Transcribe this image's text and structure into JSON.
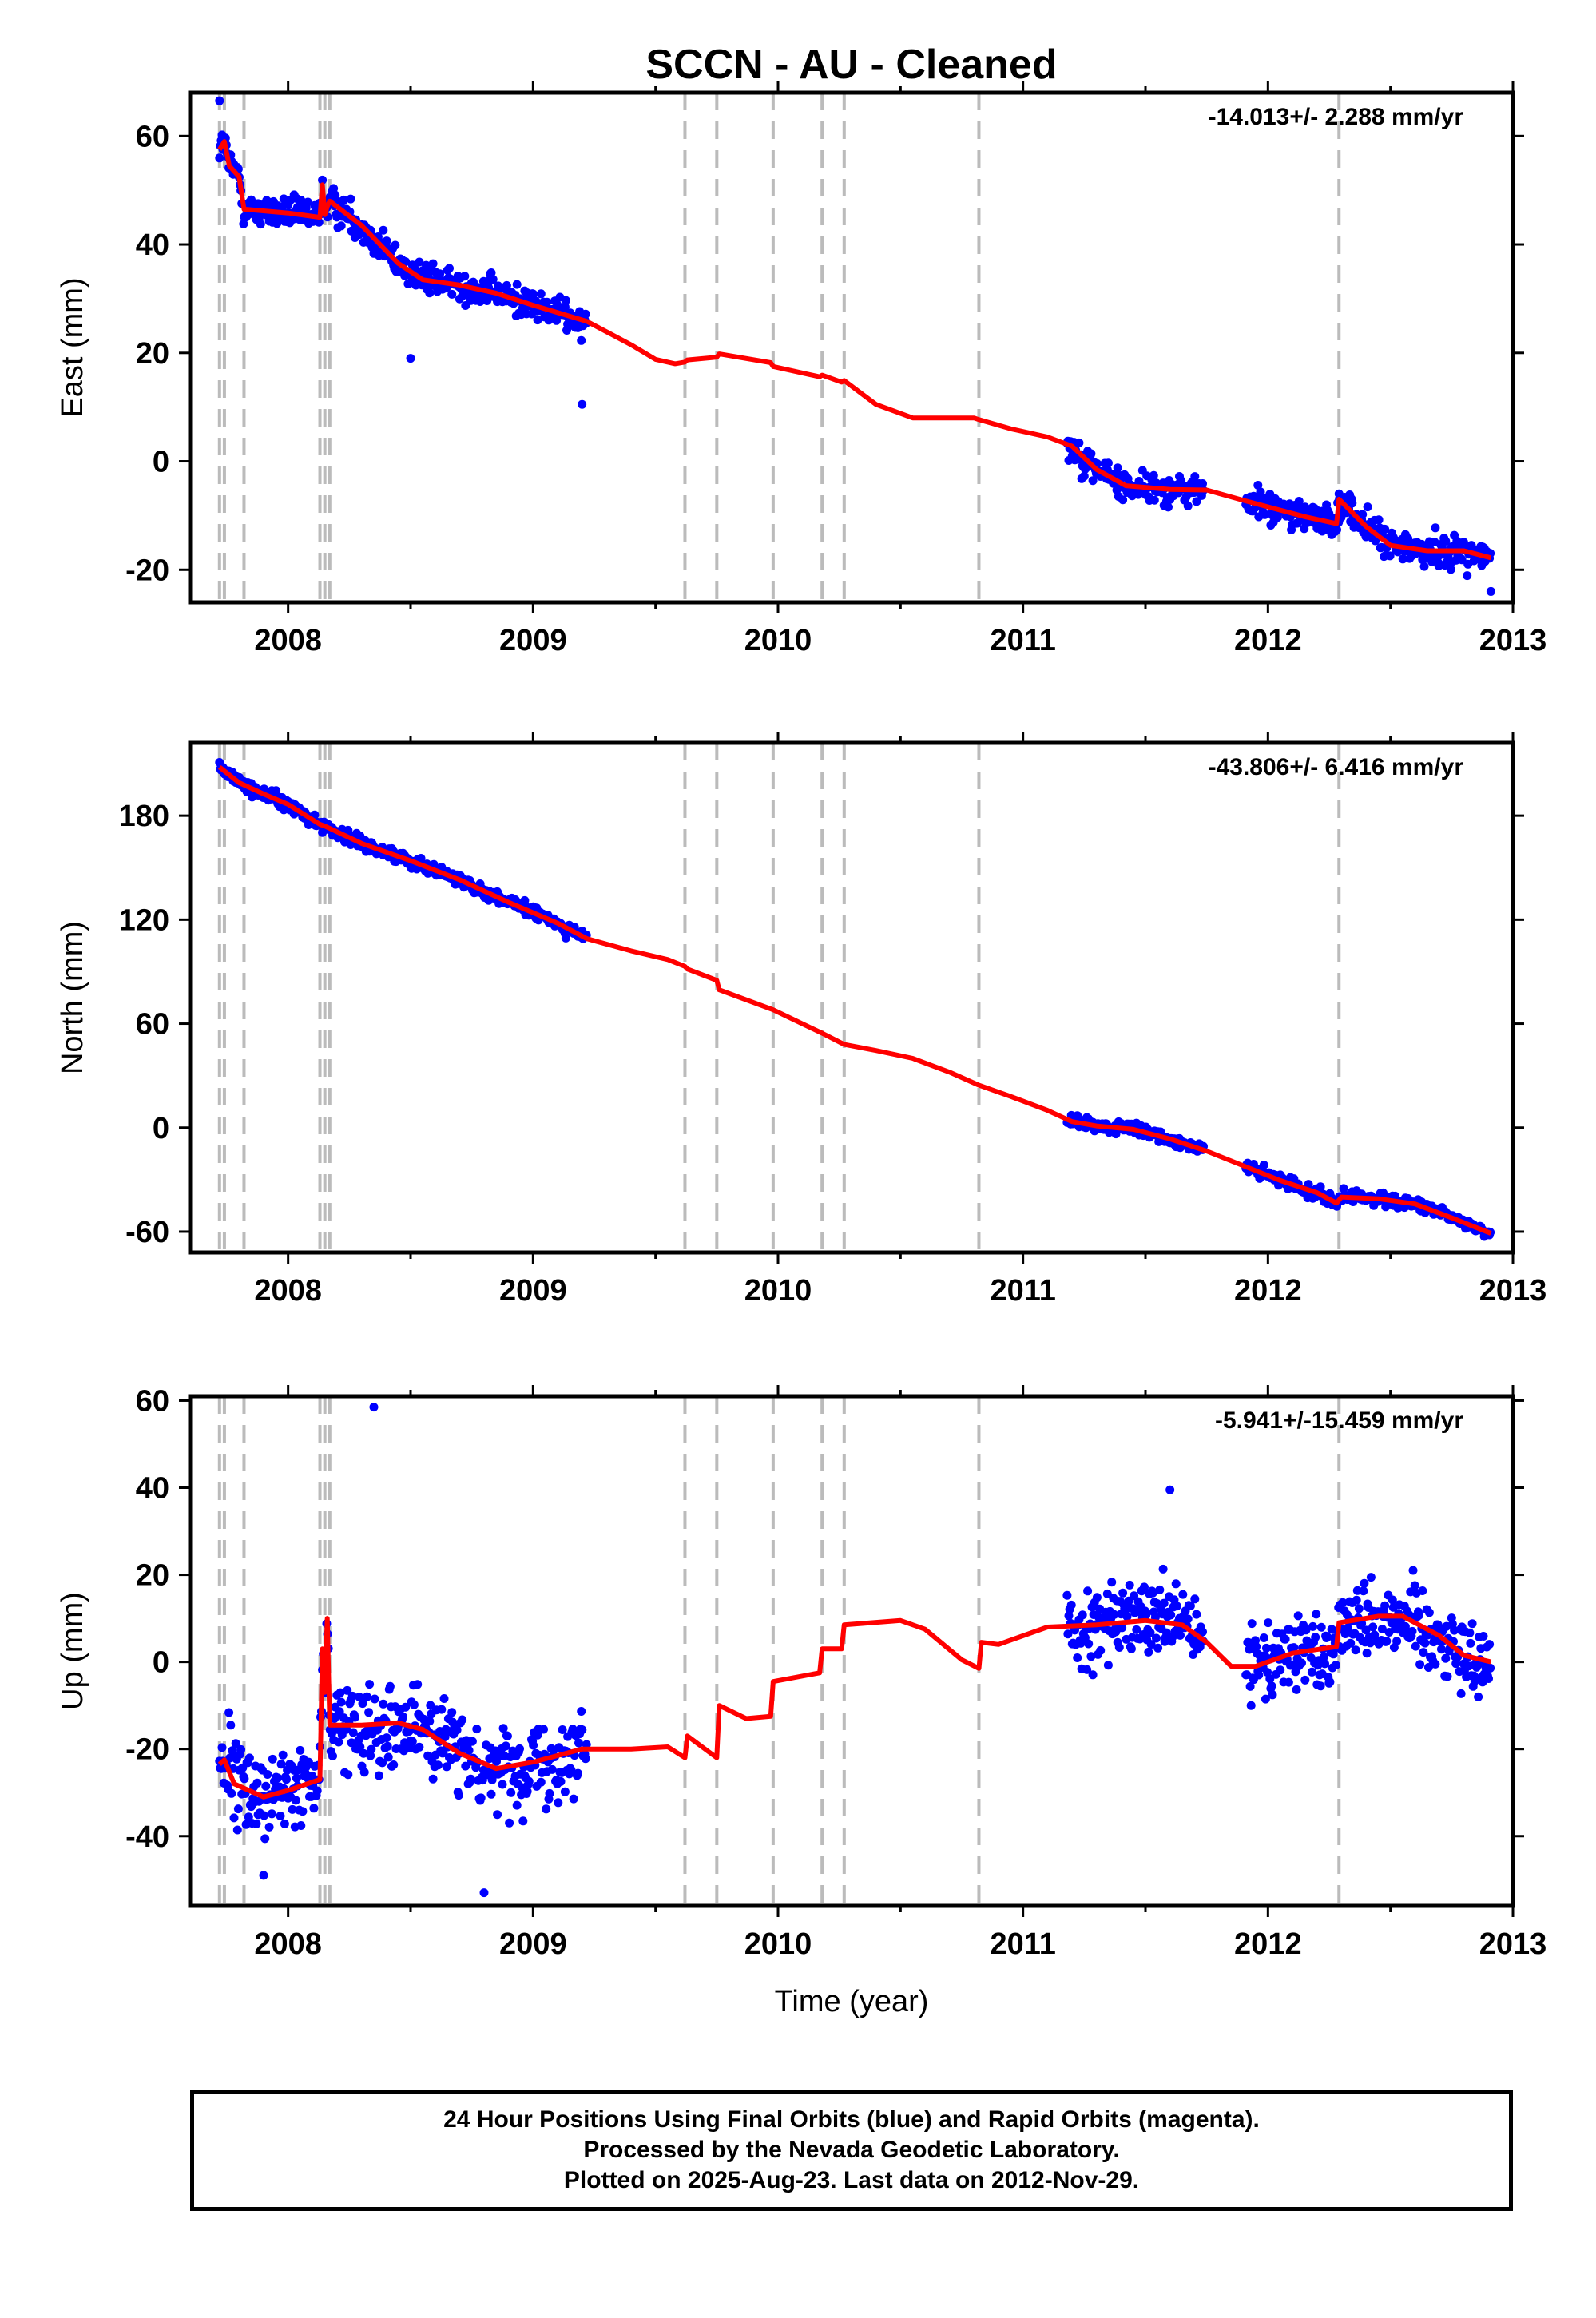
{
  "colors": {
    "final_orbits": "#0000ff",
    "model_fit": "#ff0000",
    "offset_lines": "#bbbbbb",
    "frame": "#000000"
  },
  "chart_data": [
    {
      "type": "scatter",
      "title": "SCCN  - AU - Cleaned",
      "ylabel": "East (mm)",
      "xlabel": "",
      "rate_label": "-14.013+/- 2.288 mm/yr",
      "xlim": [
        2007.6,
        2013.0
      ],
      "ylim": [
        -26,
        68
      ],
      "xticks": [
        2008,
        2009,
        2010,
        2011,
        2012,
        2013
      ],
      "yticks": [
        -20,
        0,
        20,
        40,
        60
      ],
      "grid": false,
      "offset_epochs": [
        2007.72,
        2007.74,
        2007.82,
        2008.13,
        2008.15,
        2008.17,
        2009.62,
        2009.75,
        2009.98,
        2010.18,
        2010.27,
        2010.82,
        2012.29
      ],
      "data_segments": [
        [
          2007.72,
          2009.22
        ],
        [
          2011.18,
          2011.74
        ],
        [
          2011.91,
          2012.91
        ]
      ],
      "fit_curve": [
        [
          2007.72,
          57.5
        ],
        [
          2007.74,
          59.0
        ],
        [
          2007.76,
          54.5
        ],
        [
          2007.8,
          52.5
        ],
        [
          2007.82,
          46.5
        ],
        [
          2008.0,
          45.8
        ],
        [
          2008.13,
          45.0
        ],
        [
          2008.14,
          51.0
        ],
        [
          2008.15,
          45.5
        ],
        [
          2008.16,
          47.0
        ],
        [
          2008.17,
          48.0
        ],
        [
          2008.3,
          43.5
        ],
        [
          2008.45,
          36.5
        ],
        [
          2008.55,
          33.5
        ],
        [
          2008.7,
          32.5
        ],
        [
          2008.85,
          31.0
        ],
        [
          2009.0,
          28.8
        ],
        [
          2009.22,
          25.8
        ],
        [
          2009.4,
          21.5
        ],
        [
          2009.5,
          18.8
        ],
        [
          2009.58,
          18.0
        ],
        [
          2009.62,
          18.3
        ],
        [
          2009.63,
          18.7
        ],
        [
          2009.75,
          19.2
        ],
        [
          2009.76,
          19.8
        ],
        [
          2009.97,
          18.2
        ],
        [
          2009.98,
          17.5
        ],
        [
          2010.17,
          15.6
        ],
        [
          2010.18,
          15.9
        ],
        [
          2010.26,
          14.6
        ],
        [
          2010.27,
          14.9
        ],
        [
          2010.4,
          10.5
        ],
        [
          2010.55,
          8.0
        ],
        [
          2010.7,
          8.0
        ],
        [
          2010.8,
          8.0
        ],
        [
          2010.82,
          7.7
        ],
        [
          2010.95,
          6.0
        ],
        [
          2011.1,
          4.5
        ],
        [
          2011.2,
          2.8
        ],
        [
          2011.3,
          -1.5
        ],
        [
          2011.42,
          -4.5
        ],
        [
          2011.6,
          -5.2
        ],
        [
          2011.75,
          -5.3
        ],
        [
          2011.9,
          -7.2
        ],
        [
          2012.05,
          -9.0
        ],
        [
          2012.15,
          -10.2
        ],
        [
          2012.28,
          -11.5
        ],
        [
          2012.29,
          -7.0
        ],
        [
          2012.4,
          -12.0
        ],
        [
          2012.5,
          -15.5
        ],
        [
          2012.65,
          -16.5
        ],
        [
          2012.8,
          -16.5
        ],
        [
          2012.91,
          -17.8
        ]
      ],
      "points_summary": [
        {
          "x": 2007.72,
          "y": 66.5
        },
        {
          "x": 2008.5,
          "y": 19.0
        },
        {
          "x": 2009.2,
          "y": 10.5
        },
        {
          "x": 2011.2,
          "y": 3.0
        },
        {
          "x": 2012.29,
          "y": -6.0
        },
        {
          "x": 2012.91,
          "y": -24.0
        }
      ]
    },
    {
      "type": "scatter",
      "title": "",
      "ylabel": "North (mm)",
      "xlabel": "",
      "rate_label": "-43.806+/- 6.416 mm/yr",
      "xlim": [
        2007.6,
        2013.0
      ],
      "ylim": [
        -72,
        222
      ],
      "xticks": [
        2008,
        2009,
        2010,
        2011,
        2012,
        2013
      ],
      "yticks": [
        -60,
        0,
        60,
        120,
        180
      ],
      "grid": false,
      "offset_epochs": [
        2007.72,
        2007.74,
        2007.82,
        2008.13,
        2008.15,
        2008.17,
        2009.62,
        2009.75,
        2009.98,
        2010.18,
        2010.27,
        2010.82,
        2012.29
      ],
      "data_segments": [
        [
          2007.72,
          2009.22
        ],
        [
          2011.18,
          2011.74
        ],
        [
          2011.91,
          2012.91
        ]
      ],
      "fit_curve": [
        [
          2007.72,
          208.0
        ],
        [
          2007.8,
          199.0
        ],
        [
          2007.9,
          192.5
        ],
        [
          2008.0,
          186.5
        ],
        [
          2008.13,
          175.0
        ],
        [
          2008.15,
          174.0
        ],
        [
          2008.3,
          164.0
        ],
        [
          2008.5,
          154.0
        ],
        [
          2008.7,
          143.0
        ],
        [
          2008.9,
          130.0
        ],
        [
          2009.1,
          118.0
        ],
        [
          2009.22,
          109.0
        ],
        [
          2009.4,
          102.0
        ],
        [
          2009.55,
          97.0
        ],
        [
          2009.62,
          93.0
        ],
        [
          2009.63,
          91.5
        ],
        [
          2009.75,
          85.0
        ],
        [
          2009.76,
          79.5
        ],
        [
          2009.98,
          68.0
        ],
        [
          2010.18,
          54.5
        ],
        [
          2010.27,
          48.0
        ],
        [
          2010.4,
          44.5
        ],
        [
          2010.55,
          40.0
        ],
        [
          2010.7,
          32.0
        ],
        [
          2010.82,
          24.5
        ],
        [
          2010.95,
          18.0
        ],
        [
          2011.1,
          10.0
        ],
        [
          2011.2,
          3.5
        ],
        [
          2011.3,
          1.0
        ],
        [
          2011.45,
          -1.0
        ],
        [
          2011.6,
          -6.5
        ],
        [
          2011.75,
          -13.5
        ],
        [
          2011.9,
          -22.0
        ],
        [
          2012.05,
          -30.5
        ],
        [
          2012.2,
          -37.5
        ],
        [
          2012.28,
          -43.5
        ],
        [
          2012.3,
          -40.0
        ],
        [
          2012.45,
          -41.0
        ],
        [
          2012.6,
          -44.0
        ],
        [
          2012.75,
          -52.0
        ],
        [
          2012.91,
          -61.0
        ]
      ]
    },
    {
      "type": "scatter",
      "title": "",
      "ylabel": "Up (mm)",
      "xlabel": "Time (year)",
      "rate_label": "-5.941+/-15.459 mm/yr",
      "xlim": [
        2007.6,
        2013.0
      ],
      "ylim": [
        -56,
        61
      ],
      "xticks": [
        2008,
        2009,
        2010,
        2011,
        2012,
        2013
      ],
      "yticks": [
        -40,
        -20,
        0,
        20,
        40,
        60
      ],
      "grid": false,
      "offset_epochs": [
        2007.72,
        2007.74,
        2007.82,
        2008.13,
        2008.15,
        2008.17,
        2009.62,
        2009.75,
        2009.98,
        2010.18,
        2010.27,
        2010.82,
        2012.29
      ],
      "data_segments": [
        [
          2007.72,
          2009.22
        ],
        [
          2011.18,
          2011.74
        ],
        [
          2011.91,
          2012.91
        ]
      ],
      "fit_curve": [
        [
          2007.72,
          -23.5
        ],
        [
          2007.74,
          -22.5
        ],
        [
          2007.78,
          -28.0
        ],
        [
          2007.9,
          -31.0
        ],
        [
          2008.0,
          -29.5
        ],
        [
          2008.13,
          -27.0
        ],
        [
          2008.14,
          3.0
        ],
        [
          2008.15,
          -7.0
        ],
        [
          2008.16,
          10.0
        ],
        [
          2008.17,
          -14.5
        ],
        [
          2008.3,
          -14.5
        ],
        [
          2008.45,
          -14.0
        ],
        [
          2008.55,
          -15.5
        ],
        [
          2008.7,
          -21.0
        ],
        [
          2008.85,
          -24.5
        ],
        [
          2009.0,
          -23.0
        ],
        [
          2009.2,
          -20.0
        ],
        [
          2009.4,
          -20.0
        ],
        [
          2009.55,
          -19.5
        ],
        [
          2009.62,
          -22.0
        ],
        [
          2009.63,
          -17.0
        ],
        [
          2009.75,
          -22.0
        ],
        [
          2009.76,
          -10.0
        ],
        [
          2009.87,
          -13.0
        ],
        [
          2009.97,
          -12.5
        ],
        [
          2009.98,
          -4.5
        ],
        [
          2010.17,
          -2.5
        ],
        [
          2010.18,
          3.0
        ],
        [
          2010.26,
          3.0
        ],
        [
          2010.27,
          8.5
        ],
        [
          2010.5,
          9.5
        ],
        [
          2010.6,
          7.5
        ],
        [
          2010.75,
          0.5
        ],
        [
          2010.82,
          -1.5
        ],
        [
          2010.83,
          4.5
        ],
        [
          2010.9,
          4.0
        ],
        [
          2011.1,
          8.0
        ],
        [
          2011.3,
          8.5
        ],
        [
          2011.5,
          9.5
        ],
        [
          2011.65,
          8.5
        ],
        [
          2011.75,
          4.5
        ],
        [
          2011.85,
          -1.0
        ],
        [
          2011.95,
          -1.0
        ],
        [
          2012.1,
          2.0
        ],
        [
          2012.28,
          3.5
        ],
        [
          2012.29,
          9.0
        ],
        [
          2012.45,
          10.5
        ],
        [
          2012.55,
          10.5
        ],
        [
          2012.7,
          6.0
        ],
        [
          2012.8,
          1.5
        ],
        [
          2012.91,
          0.0
        ]
      ],
      "points_summary": [
        {
          "x": 2008.35,
          "y": 58.5
        },
        {
          "x": 2008.8,
          "y": -53.0
        },
        {
          "x": 2011.6,
          "y": 39.5
        },
        {
          "x": 2007.9,
          "y": -49.0
        }
      ]
    }
  ],
  "footer": {
    "line1": "24 Hour Positions Using Final Orbits (blue) and Rapid Orbits (magenta).",
    "line2": "Processed by the Nevada Geodetic Laboratory.",
    "line3": "Plotted on 2025-Aug-23. Last data on 2012-Nov-29."
  }
}
